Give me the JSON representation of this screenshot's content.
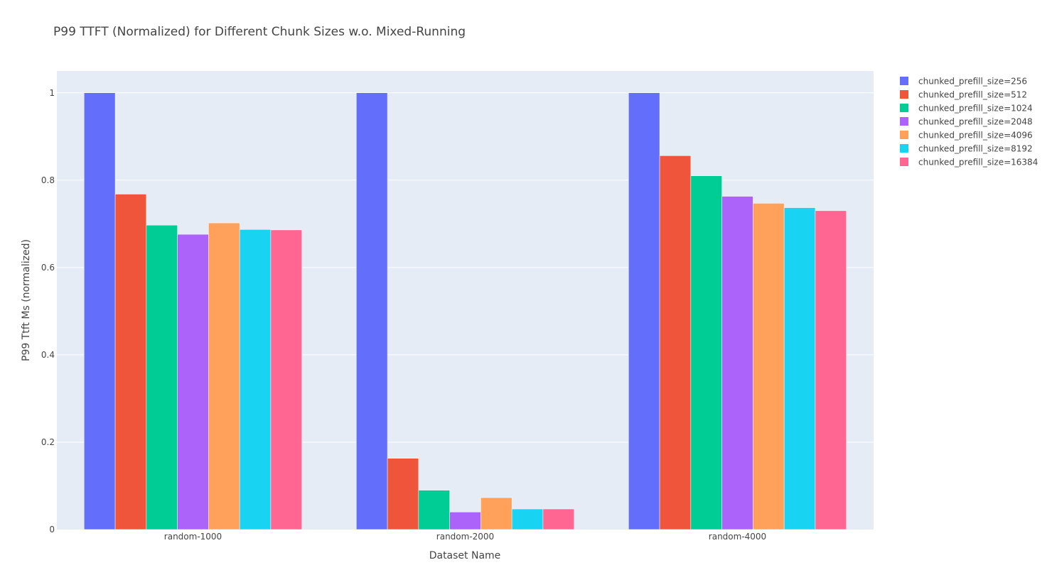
{
  "chart_data": {
    "type": "bar",
    "title": "P99 TTFT (Normalized) for Different Chunk Sizes w.o. Mixed-Running",
    "xlabel": "Dataset Name",
    "ylabel": "P99 Ttft Ms (normalized)",
    "categories": [
      "random-1000",
      "random-2000",
      "random-4000"
    ],
    "ylim": [
      0,
      1.05
    ],
    "yticks": [
      0,
      0.2,
      0.4,
      0.6,
      0.8,
      1
    ],
    "ytick_labels": [
      "0",
      "0.2",
      "0.4",
      "0.6",
      "0.8",
      "1"
    ],
    "grid": true,
    "legend_position": "top-right",
    "series": [
      {
        "name": "chunked_prefill_size=256",
        "color": "#636efa",
        "values": [
          1.0,
          1.0,
          1.0
        ]
      },
      {
        "name": "chunked_prefill_size=512",
        "color": "#ef553b",
        "values": [
          0.768,
          0.163,
          0.856
        ]
      },
      {
        "name": "chunked_prefill_size=1024",
        "color": "#00cc96",
        "values": [
          0.697,
          0.09,
          0.81
        ]
      },
      {
        "name": "chunked_prefill_size=2048",
        "color": "#ab63fa",
        "values": [
          0.676,
          0.04,
          0.763
        ]
      },
      {
        "name": "chunked_prefill_size=4096",
        "color": "#ffa15a",
        "values": [
          0.702,
          0.073,
          0.747
        ]
      },
      {
        "name": "chunked_prefill_size=8192",
        "color": "#19d3f3",
        "values": [
          0.687,
          0.047,
          0.737
        ]
      },
      {
        "name": "chunked_prefill_size=16384",
        "color": "#ff6692",
        "values": [
          0.686,
          0.047,
          0.73
        ]
      }
    ]
  }
}
